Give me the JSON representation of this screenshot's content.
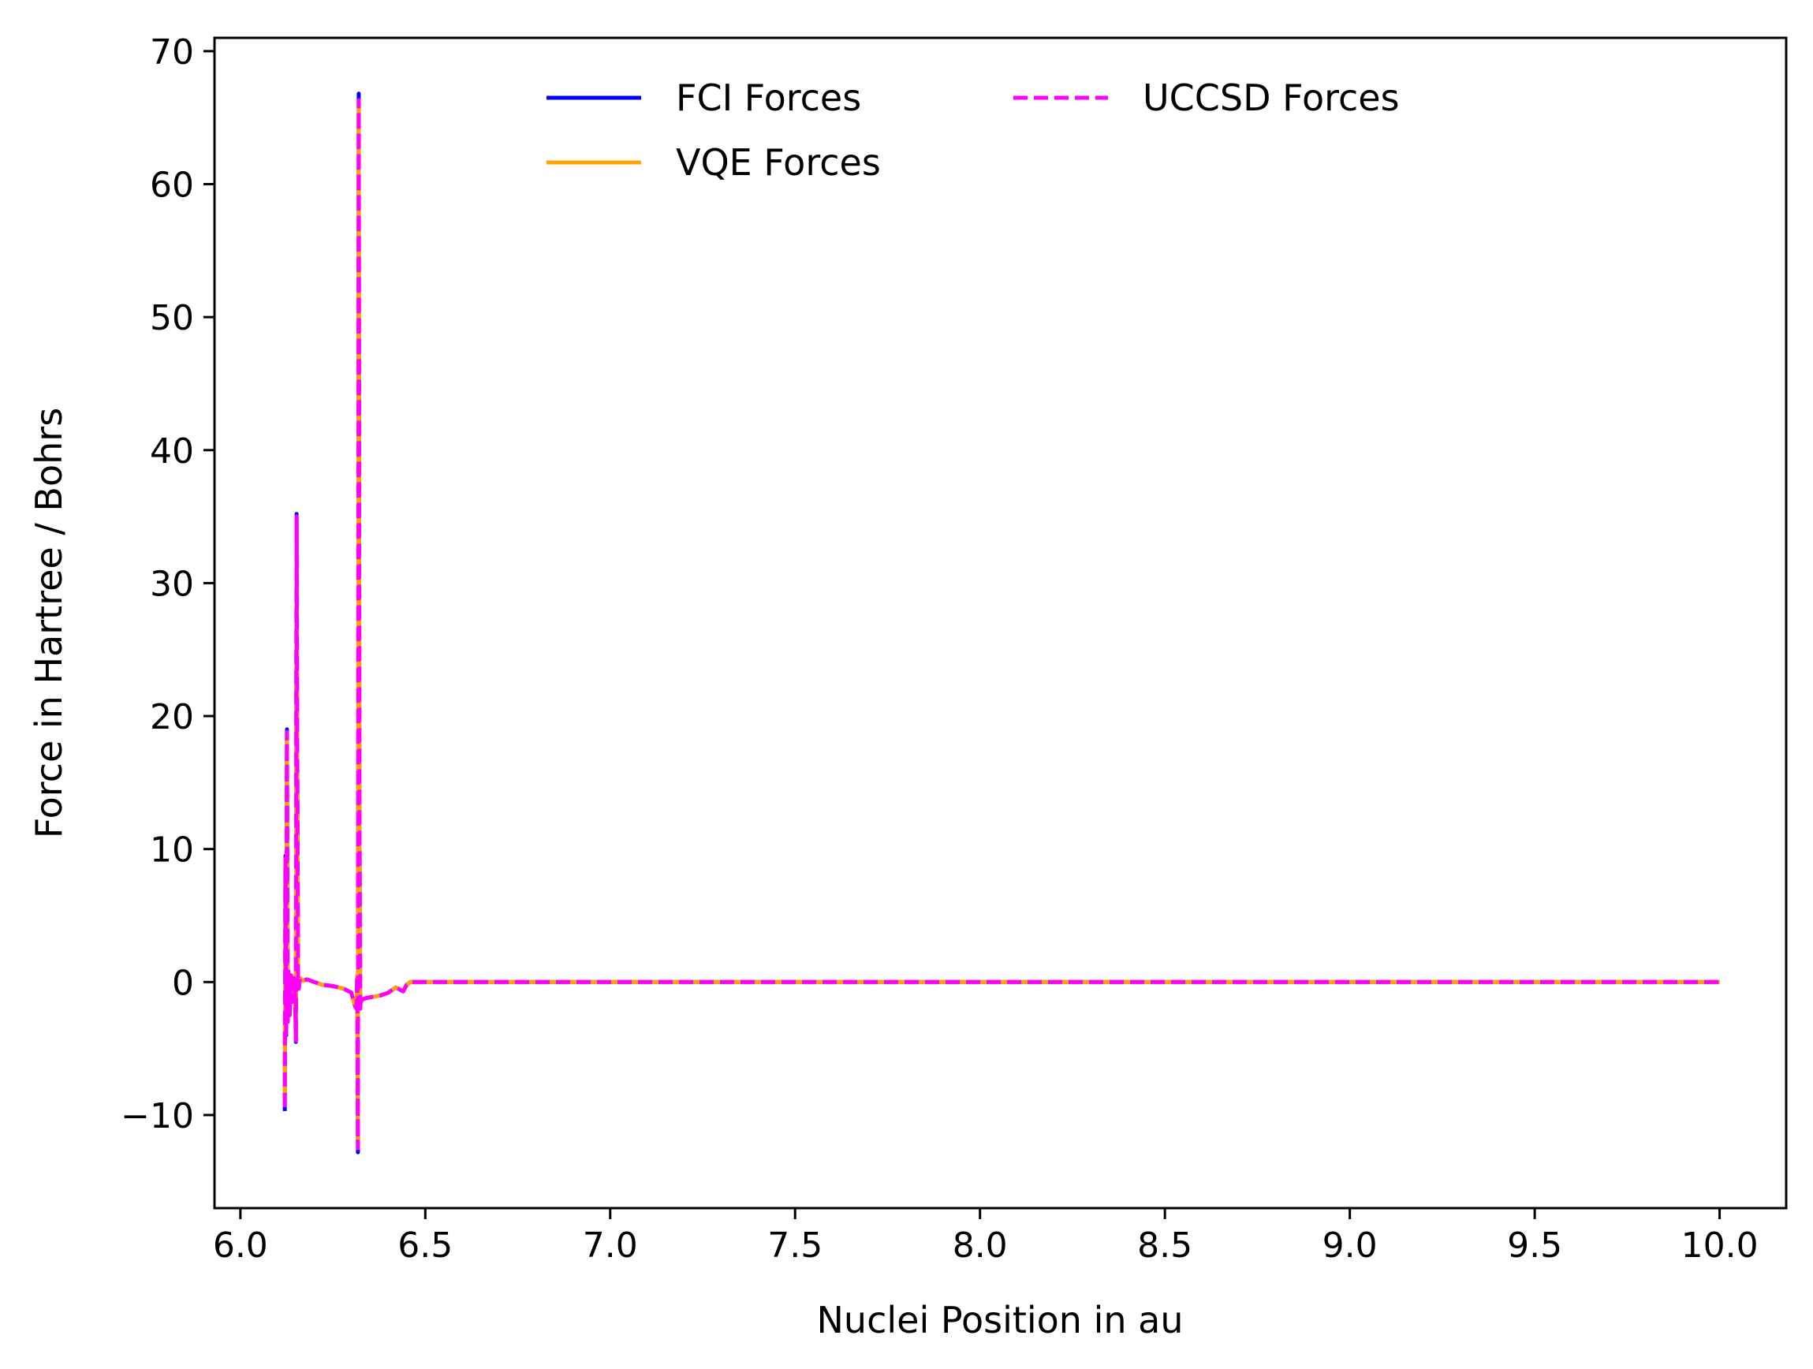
{
  "chart_data": {
    "type": "line",
    "xlabel": "Nuclei Position in au",
    "ylabel": "Force in Hartree / Bohrs",
    "xlim": [
      5.93,
      10.18
    ],
    "ylim": [
      -17,
      71
    ],
    "grid": false,
    "legend_placement": "top-center",
    "xticks": [
      6.0,
      6.5,
      7.0,
      7.5,
      8.0,
      8.5,
      9.0,
      9.5,
      10.0
    ],
    "xtick_labels": [
      "6.0",
      "6.5",
      "7.0",
      "7.5",
      "8.0",
      "8.5",
      "9.0",
      "9.5",
      "10.0"
    ],
    "yticks": [
      -10,
      0,
      10,
      20,
      30,
      40,
      50,
      60,
      70
    ],
    "ytick_labels": [
      "−10",
      "0",
      "10",
      "20",
      "30",
      "40",
      "50",
      "60",
      "70"
    ],
    "series": [
      {
        "name": "FCI Forces",
        "color": "#0000ff",
        "style": "solid",
        "x": [
          6.12,
          6.122,
          6.124,
          6.126,
          6.128,
          6.13,
          6.133,
          6.137,
          6.14,
          6.145,
          6.148,
          6.15,
          6.152,
          6.154,
          6.156,
          6.158,
          6.161,
          6.165,
          6.17,
          6.18,
          6.2,
          6.22,
          6.25,
          6.28,
          6.3,
          6.31,
          6.314,
          6.316,
          6.318,
          6.32,
          6.322,
          6.324,
          6.326,
          6.33,
          6.34,
          6.36,
          6.38,
          6.4,
          6.42,
          6.44,
          6.45,
          6.46,
          6.5,
          7.0,
          7.5,
          8.0,
          8.5,
          9.0,
          9.5,
          10.0
        ],
        "y": [
          -9.7,
          9.5,
          -4.0,
          19.0,
          -3.0,
          0.8,
          -2.5,
          0.5,
          -1.5,
          0.3,
          -1.0,
          -4.5,
          35.2,
          17.0,
          0.5,
          -0.5,
          0.3,
          0.2,
          0.1,
          0.2,
          0.0,
          -0.2,
          -0.3,
          -0.5,
          -0.8,
          -1.8,
          -2.0,
          0.5,
          -12.8,
          66.8,
          14.0,
          -2.0,
          -1.5,
          -1.3,
          -1.2,
          -1.1,
          -1.0,
          -0.8,
          -0.4,
          -0.7,
          -0.2,
          0.0,
          0.0,
          0.0,
          0.0,
          0.0,
          0.0,
          0.0,
          0.0,
          0.0
        ]
      },
      {
        "name": "VQE Forces",
        "color": "#ffa500",
        "style": "solid",
        "x": [
          6.12,
          6.122,
          6.124,
          6.126,
          6.128,
          6.13,
          6.133,
          6.137,
          6.14,
          6.145,
          6.148,
          6.15,
          6.152,
          6.154,
          6.156,
          6.158,
          6.161,
          6.165,
          6.17,
          6.18,
          6.2,
          6.22,
          6.25,
          6.28,
          6.3,
          6.31,
          6.314,
          6.316,
          6.318,
          6.32,
          6.322,
          6.324,
          6.326,
          6.33,
          6.34,
          6.36,
          6.38,
          6.4,
          6.42,
          6.44,
          6.45,
          6.46,
          6.5,
          7.0,
          7.5,
          8.0,
          8.5,
          9.0,
          9.5,
          10.0
        ],
        "y": [
          -9.4,
          9.3,
          -3.9,
          18.8,
          -3.0,
          0.8,
          -2.5,
          0.5,
          -1.5,
          0.3,
          -1.0,
          -4.4,
          35.0,
          16.8,
          0.5,
          -0.5,
          0.3,
          0.2,
          0.1,
          0.2,
          0.0,
          -0.2,
          -0.3,
          -0.5,
          -0.8,
          -1.8,
          -2.0,
          0.5,
          -12.5,
          66.3,
          13.8,
          -2.0,
          -1.5,
          -1.3,
          -1.2,
          -1.1,
          -1.0,
          -0.8,
          -0.4,
          -0.7,
          -0.2,
          0.0,
          0.0,
          0.0,
          0.0,
          0.0,
          0.0,
          0.0,
          0.0,
          0.0
        ]
      },
      {
        "name": "UCCSD Forces",
        "color": "#ff00ff",
        "style": "dashed",
        "x": [
          6.12,
          6.122,
          6.124,
          6.126,
          6.128,
          6.13,
          6.133,
          6.137,
          6.14,
          6.145,
          6.148,
          6.15,
          6.152,
          6.154,
          6.156,
          6.158,
          6.161,
          6.165,
          6.17,
          6.18,
          6.2,
          6.22,
          6.25,
          6.28,
          6.3,
          6.31,
          6.314,
          6.316,
          6.318,
          6.32,
          6.322,
          6.324,
          6.326,
          6.33,
          6.34,
          6.36,
          6.38,
          6.4,
          6.42,
          6.44,
          6.45,
          6.46,
          6.5,
          7.0,
          7.5,
          8.0,
          8.5,
          9.0,
          9.5,
          10.0
        ],
        "y": [
          -9.4,
          9.3,
          -3.9,
          18.8,
          -3.0,
          0.8,
          -2.5,
          0.5,
          -1.5,
          0.3,
          -1.0,
          -4.4,
          35.0,
          16.8,
          0.5,
          -0.5,
          0.3,
          0.2,
          0.1,
          0.2,
          0.0,
          -0.2,
          -0.3,
          -0.5,
          -0.8,
          -1.8,
          -2.0,
          0.5,
          -12.5,
          66.3,
          13.8,
          -2.0,
          -1.5,
          -1.3,
          -1.2,
          -1.1,
          -1.0,
          -0.8,
          -0.4,
          -0.7,
          -0.2,
          0.0,
          0.0,
          0.0,
          0.0,
          0.0,
          0.0,
          0.0,
          0.0,
          0.0
        ]
      }
    ]
  }
}
